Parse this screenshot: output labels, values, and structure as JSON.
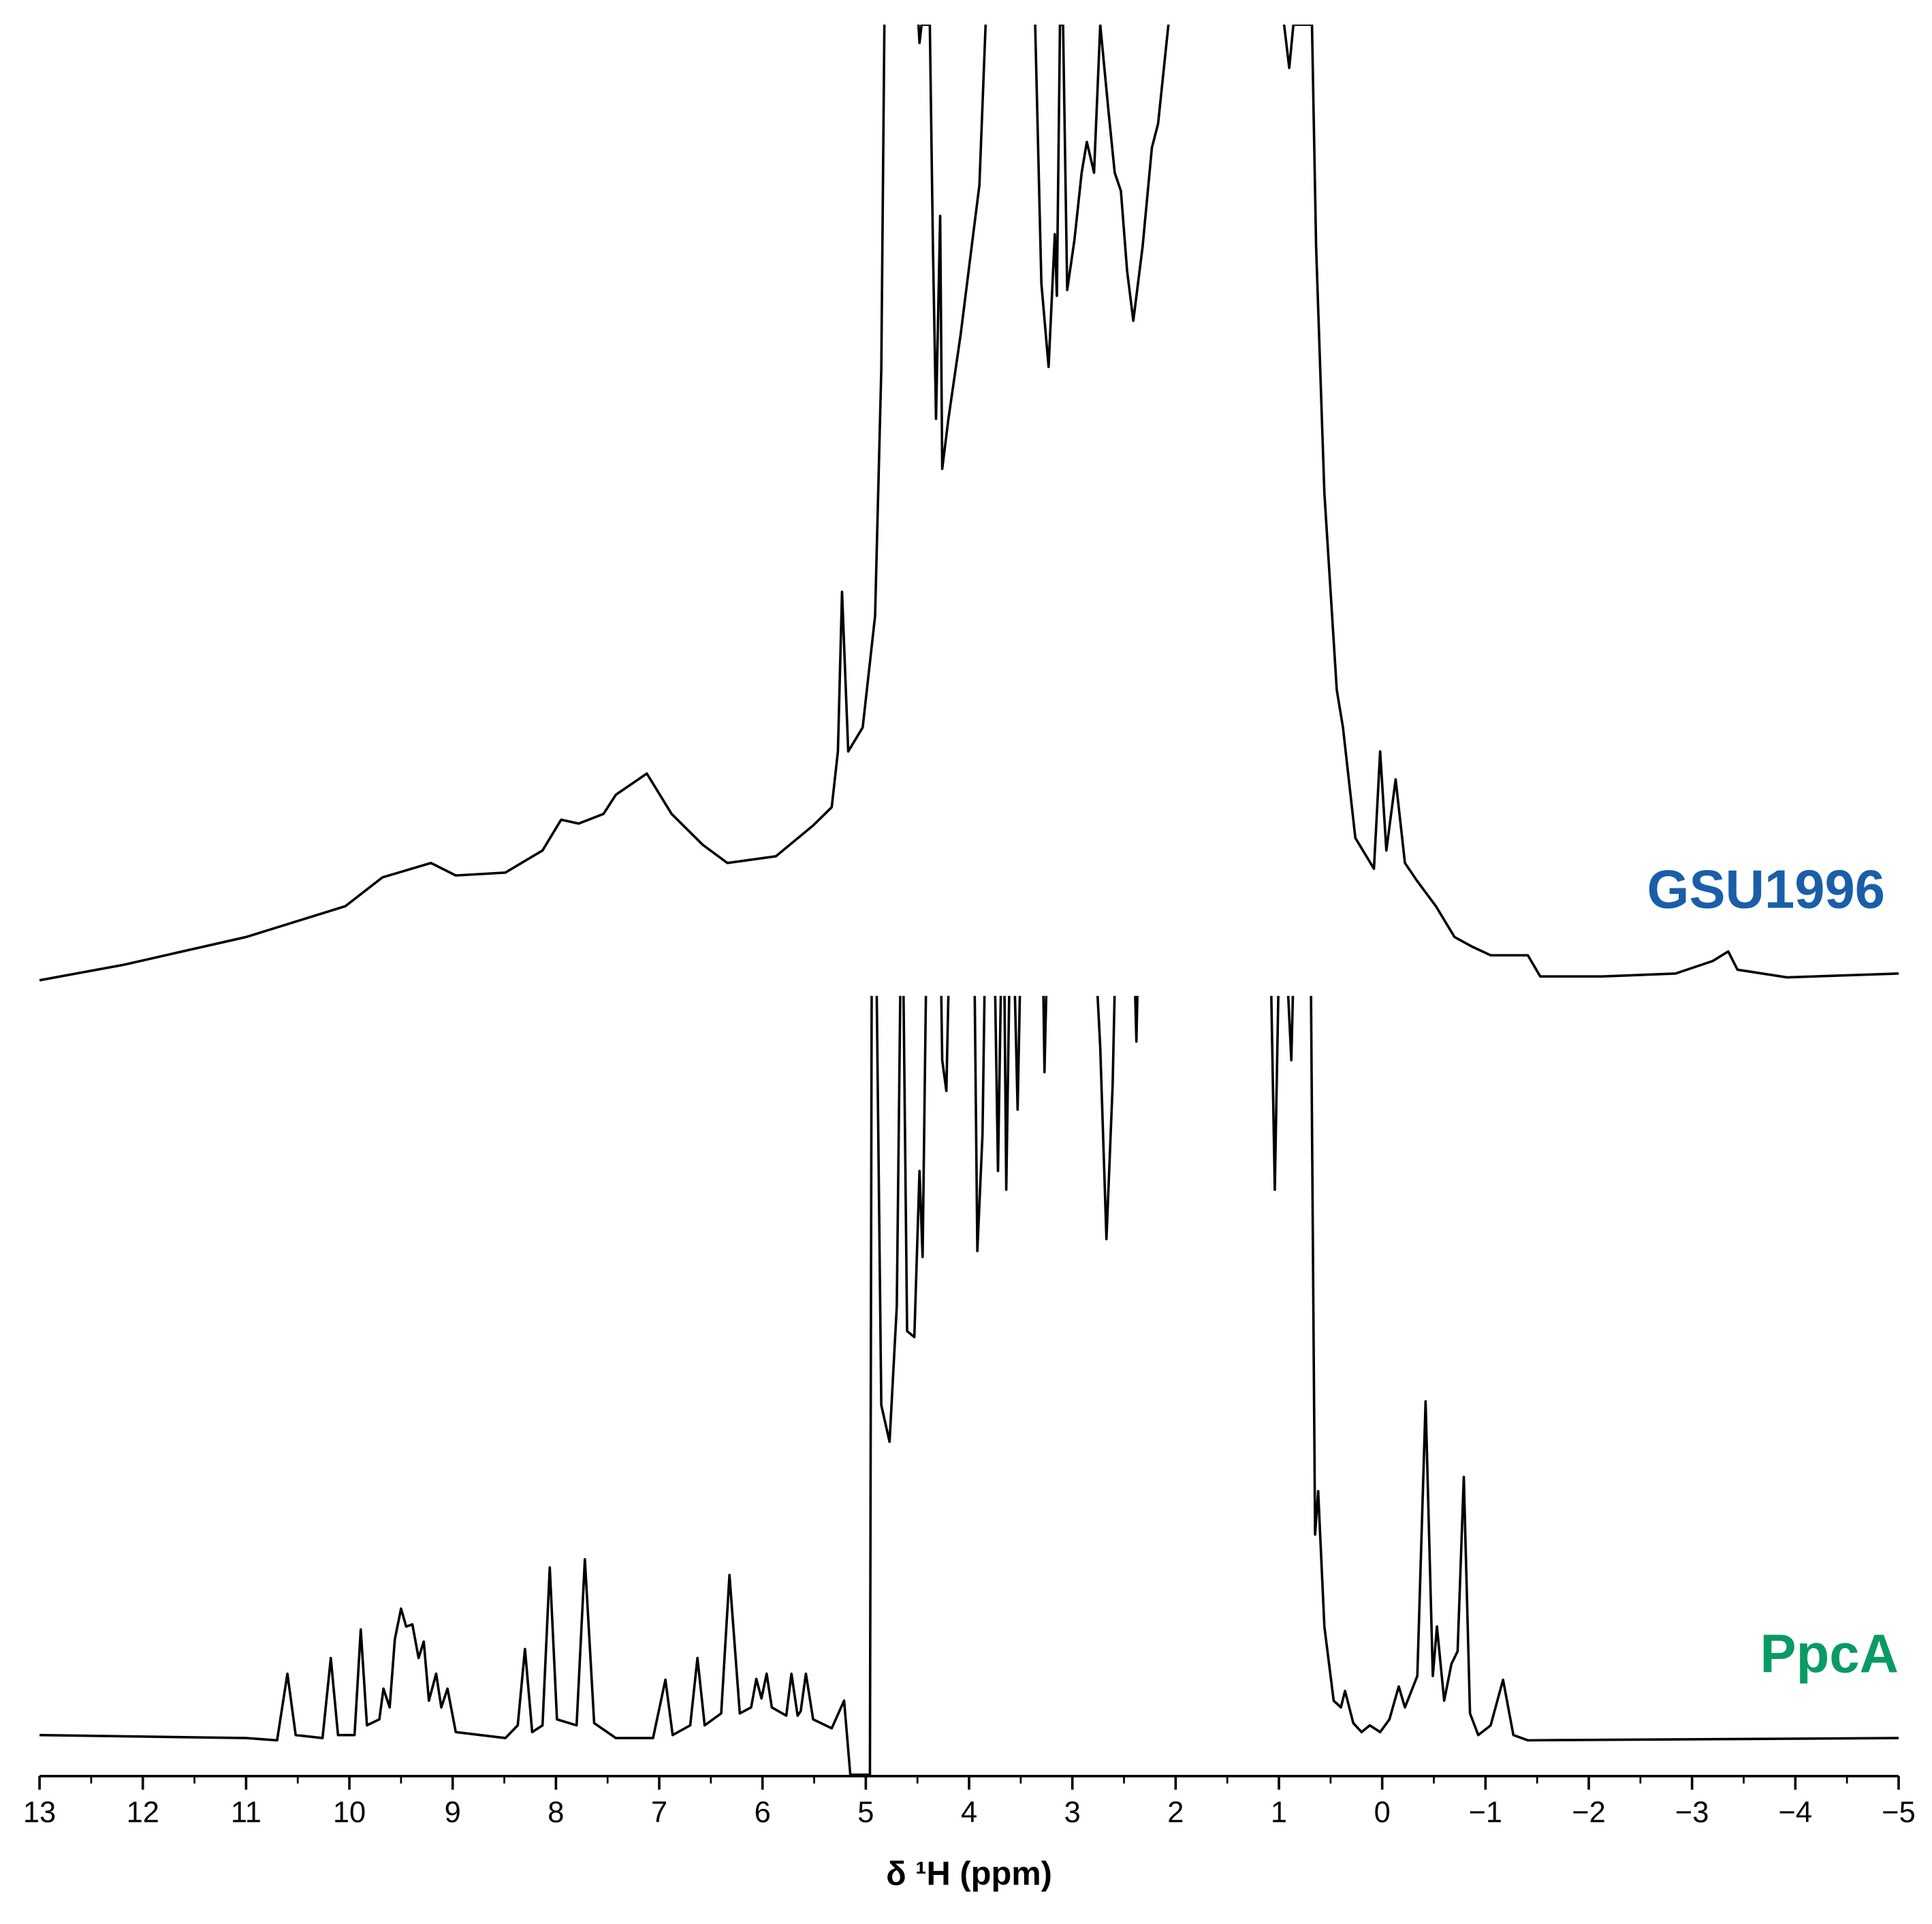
{
  "chart_data": [
    {
      "type": "line",
      "xlim": [
        13,
        -5
      ],
      "ylim": [
        0,
        100
      ],
      "series": [
        {
          "name": "GSU1996",
          "color": "#000000",
          "label_color": "#1a5ea8",
          "x": [
            13.0,
            12.19,
            11.0,
            10.04,
            9.68,
            9.21,
            8.97,
            8.49,
            8.13,
            7.95,
            7.78,
            7.54,
            7.42,
            7.12,
            6.88,
            6.58,
            6.34,
            5.87,
            5.51,
            5.33,
            5.27,
            5.23,
            5.17,
            5.03,
            4.91,
            4.85,
            4.82,
            4.67,
            4.49,
            4.48,
            4.46,
            4.38,
            4.35,
            4.32,
            4.28,
            4.26,
            4.2,
            4.08,
            3.96,
            3.9,
            3.84,
            3.6,
            3.36,
            3.3,
            3.23,
            3.17,
            3.15,
            3.12,
            3.09,
            3.05,
            2.98,
            2.91,
            2.86,
            2.79,
            2.73,
            2.65,
            2.59,
            2.53,
            2.47,
            2.41,
            2.32,
            2.23,
            2.17,
            2.07,
            1.45,
            0.95,
            0.9,
            0.86,
            0.68,
            0.64,
            0.56,
            0.44,
            0.38,
            0.26,
            0.08,
            0.02,
            -0.04,
            -0.13,
            -0.22,
            -0.34,
            -0.52,
            -0.7,
            -0.87,
            -1.05,
            -1.41,
            -1.53,
            -2.13,
            -2.84,
            -3.2,
            -3.35,
            -3.44,
            -3.92,
            -5.0
          ],
          "values": [
            0.6,
            2.2,
            5.1,
            8.3,
            11.3,
            12.8,
            11.5,
            11.8,
            14.1,
            17.3,
            16.9,
            17.9,
            19.9,
            22.1,
            17.9,
            14.7,
            12.8,
            13.5,
            16.7,
            18.6,
            24.4,
            41.0,
            24.4,
            26.9,
            38.5,
            64.1,
            100,
            110,
            100,
            98.1,
            100,
            100,
            76.9,
            59.0,
            80.1,
            53.8,
            59.0,
            67.9,
            78.2,
            83.3,
            100,
            110,
            100,
            73.1,
            64.4,
            78.2,
            71.8,
            100,
            100,
            72.4,
            77.6,
            84.6,
            87.8,
            84.6,
            100,
            91.0,
            84.6,
            82.7,
            74.4,
            69.2,
            76.9,
            87.2,
            89.7,
            100,
            110,
            100,
            95.5,
            100,
            100,
            76.9,
            51.3,
            30.8,
            26.9,
            15.4,
            12.2,
            24.4,
            14.1,
            21.5,
            12.8,
            10.9,
            8.3,
            5.1,
            4.1,
            3.2,
            3.2,
            1.0,
            1.0,
            1.3,
            2.6,
            3.6,
            1.7,
            0.9,
            1.3
          ]
        }
      ]
    },
    {
      "type": "line",
      "xlim": [
        13,
        -5
      ],
      "ylim": [
        0,
        100
      ],
      "xticks": [
        13,
        12,
        11,
        10,
        9,
        8,
        7,
        6,
        5,
        4,
        3,
        2,
        1,
        0,
        {
          "value": -1,
          "label": "−1"
        },
        {
          "value": -2,
          "label": "−2"
        },
        {
          "value": -3,
          "label": "−3"
        },
        {
          "value": -4,
          "label": "−4"
        },
        {
          "value": -5,
          "label": "−5"
        }
      ],
      "xlabel": "δ ¹H (ppm)",
      "series": [
        {
          "name": "PpcA",
          "color": "#000000",
          "label_color": "#0a9a64",
          "x": [
            13.0,
            11.0,
            10.7,
            10.6,
            10.52,
            10.26,
            10.18,
            10.11,
            9.95,
            9.89,
            9.83,
            9.71,
            9.67,
            9.61,
            9.56,
            9.5,
            9.45,
            9.39,
            9.33,
            9.28,
            9.23,
            9.16,
            9.11,
            9.05,
            8.97,
            8.49,
            8.37,
            8.3,
            8.23,
            8.13,
            8.06,
            7.99,
            7.8,
            7.72,
            7.63,
            7.42,
            7.06,
            6.94,
            6.87,
            6.7,
            6.63,
            6.56,
            6.4,
            6.32,
            6.22,
            6.11,
            6.06,
            6.01,
            5.96,
            5.91,
            5.77,
            5.72,
            5.66,
            5.63,
            5.58,
            5.51,
            5.33,
            5.21,
            5.15,
            4.96,
            4.94,
            4.91,
            4.85,
            4.77,
            4.7,
            4.65,
            4.6,
            4.53,
            4.48,
            4.45,
            4.4,
            4.29,
            4.26,
            4.22,
            4.17,
            3.96,
            3.92,
            3.87,
            3.83,
            3.77,
            3.72,
            3.67,
            3.64,
            3.59,
            3.53,
            3.48,
            3.3,
            3.27,
            3.22,
            2.83,
            2.73,
            2.67,
            2.61,
            2.56,
            2.43,
            2.38,
            2.34,
            1.1,
            1.04,
            0.98,
            0.88,
            0.83,
            0.7,
            0.65,
            0.62,
            0.56,
            0.47,
            0.4,
            0.36,
            0.28,
            0.2,
            0.12,
            0.02,
            -0.07,
            -0.16,
            -0.22,
            -0.34,
            -0.42,
            -0.49,
            -0.53,
            -0.6,
            -0.67,
            -0.73,
            -0.79,
            -0.85,
            -0.93,
            -1.05,
            -1.17,
            -1.27,
            -1.41,
            -5.0
          ],
          "values": [
            1.2,
            0.8,
            0.5,
            9.4,
            1.2,
            0.8,
            11.5,
            1.2,
            1.2,
            15.3,
            2.5,
            3.3,
            7.4,
            4.9,
            14.0,
            18.1,
            15.7,
            16.0,
            11.5,
            13.7,
            5.8,
            9.4,
            4.9,
            7.4,
            1.6,
            0.8,
            2.5,
            12.7,
            1.6,
            2.5,
            23.6,
            3.3,
            2.5,
            24.7,
            2.8,
            0.8,
            0.8,
            8.6,
            1.2,
            2.5,
            11.5,
            2.5,
            4.1,
            22.6,
            4.1,
            4.9,
            8.7,
            6.1,
            9.4,
            4.9,
            3.8,
            9.4,
            3.8,
            4.4,
            9.4,
            3.3,
            2.1,
            5.8,
            -4.1,
            -4.1,
            120,
            120,
            45.3,
            40.4,
            58.5,
            120,
            55.2,
            54.4,
            76.6,
            65.1,
            120,
            120,
            91.4,
            87.3,
            120,
            120,
            65.9,
            81.5,
            120,
            120,
            76.6,
            120,
            74.1,
            120,
            84.8,
            120,
            120,
            89.8,
            120,
            120,
            93.1,
            67.5,
            88.1,
            120,
            120,
            93.9,
            120,
            120,
            74.1,
            120,
            91.4,
            120,
            120,
            28.0,
            33.8,
            15.7,
            5.8,
            4.9,
            7.1,
            2.8,
            1.6,
            2.5,
            1.6,
            3.3,
            7.7,
            4.9,
            9.1,
            45.8,
            9.1,
            15.7,
            5.8,
            10.7,
            12.4,
            35.7,
            4.1,
            1.2,
            2.5,
            8.6,
            1.2,
            0.5,
            0.8
          ]
        }
      ]
    }
  ]
}
